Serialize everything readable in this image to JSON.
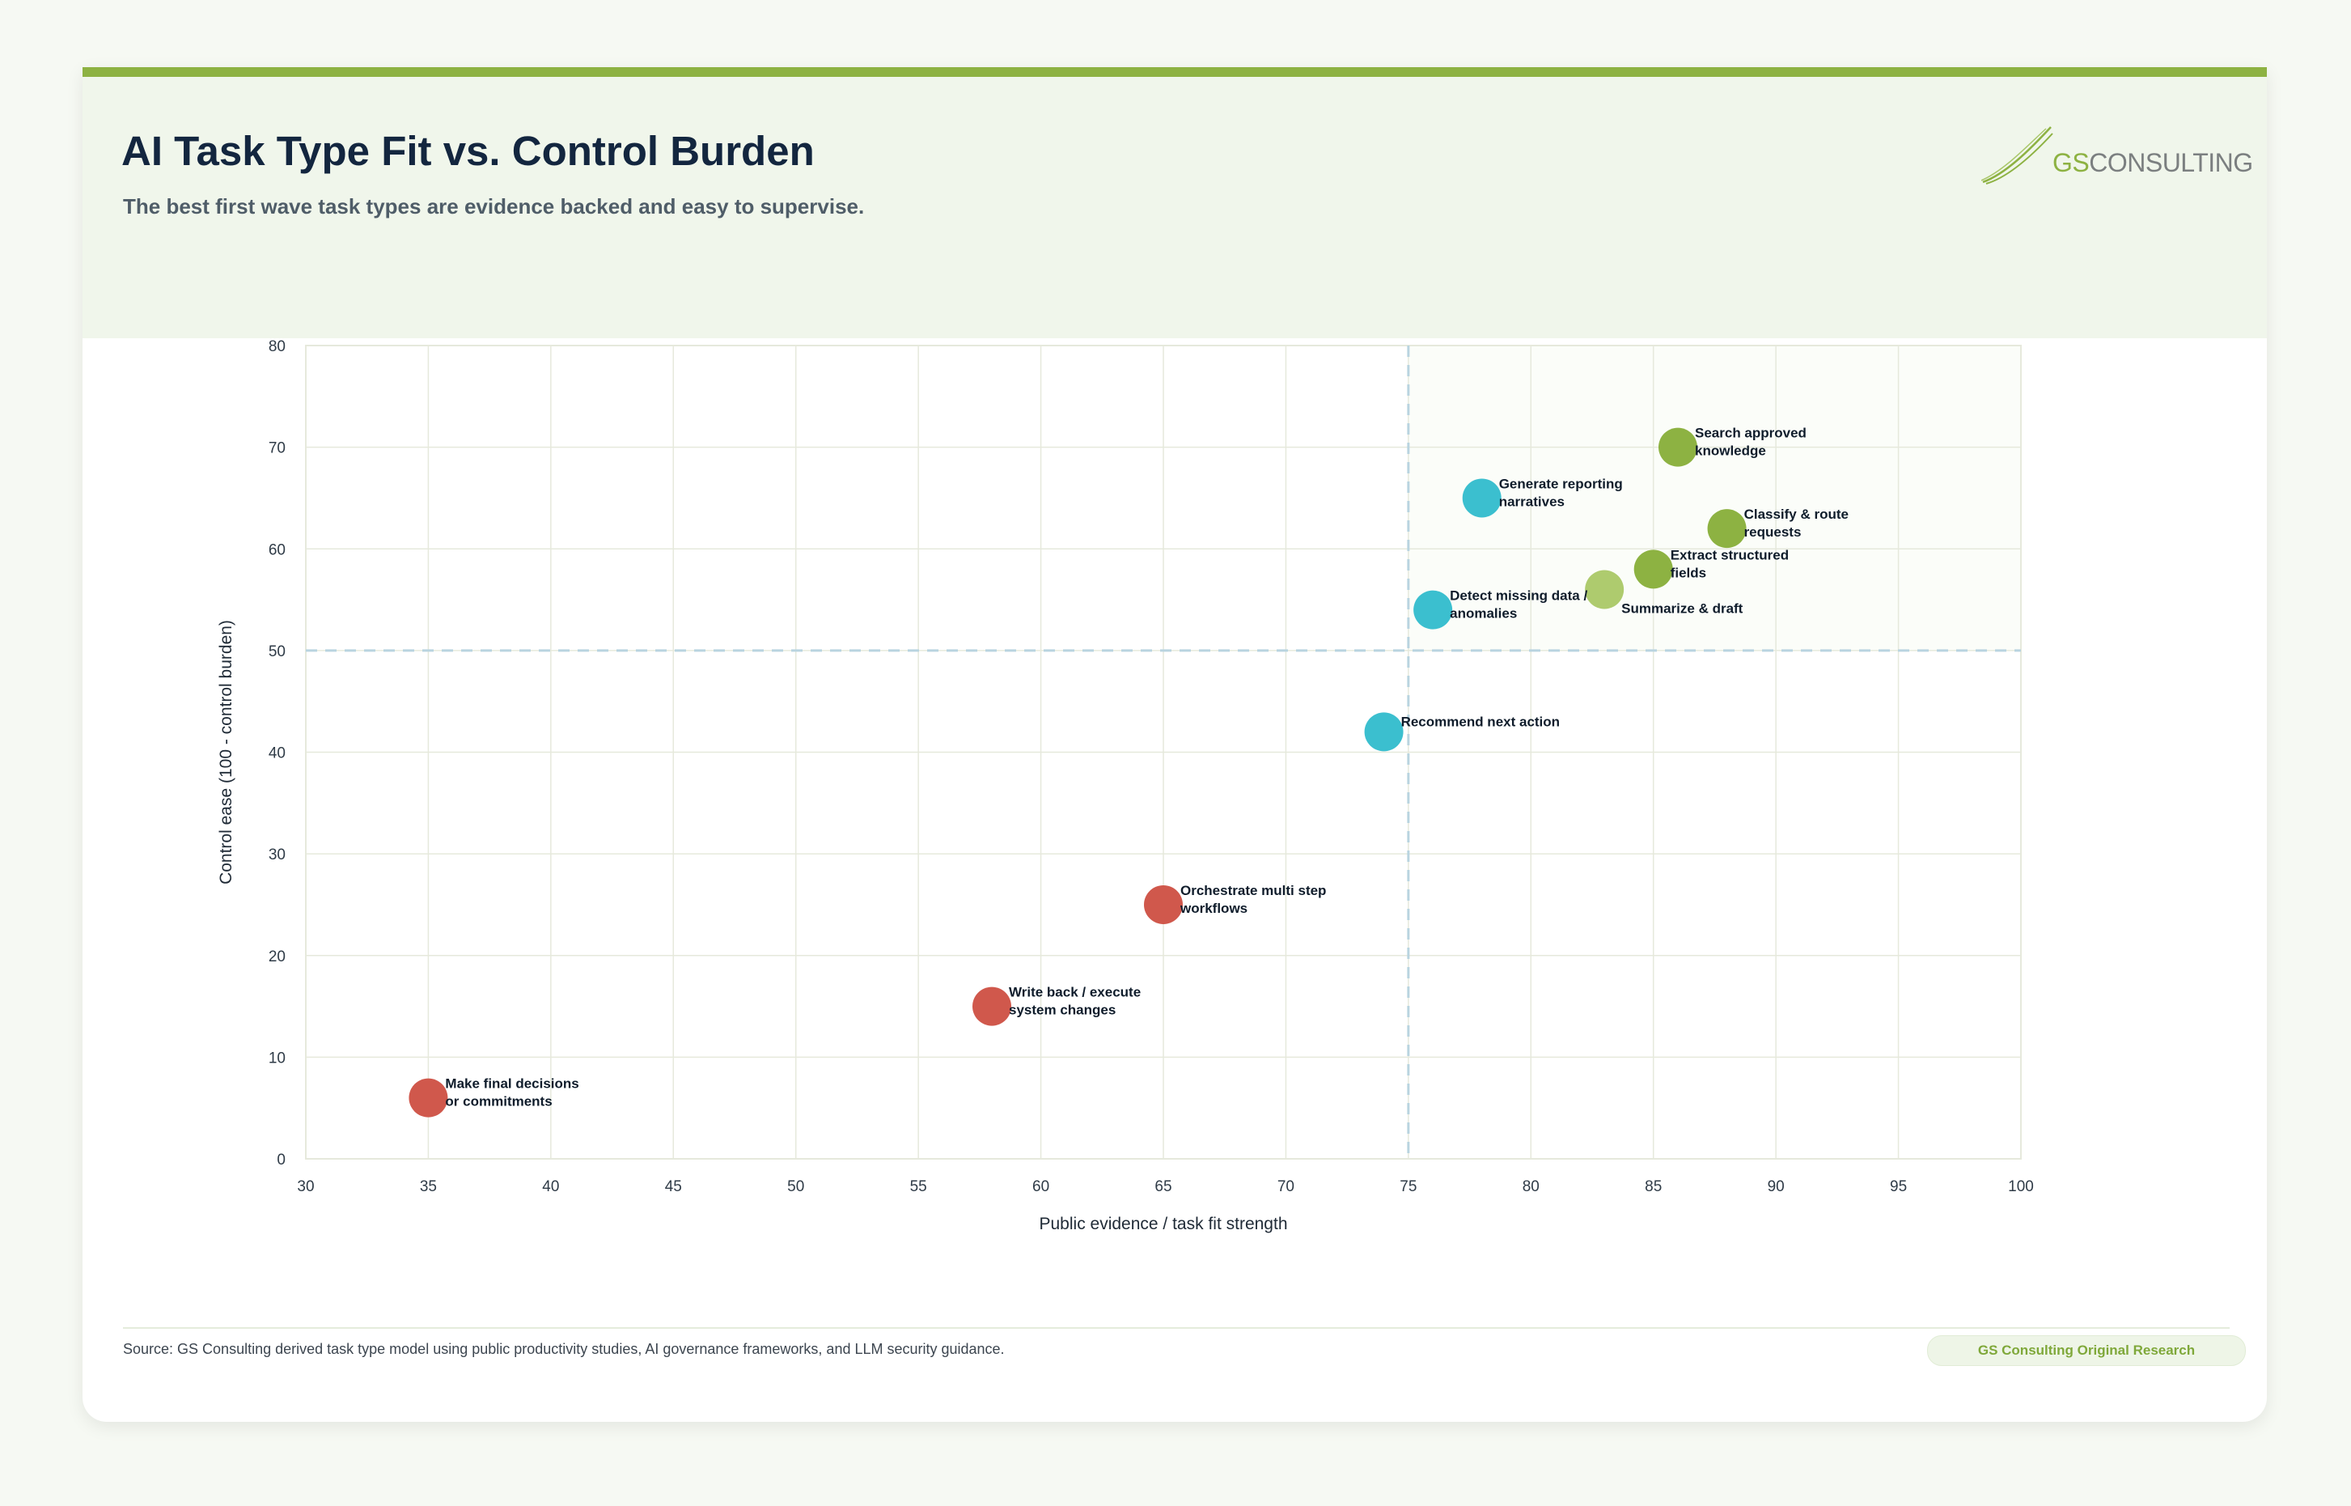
{
  "header": {
    "title": "AI Task Type Fit vs. Control Burden",
    "subtitle": "The best first wave task types are evidence backed and easy to supervise."
  },
  "logo": {
    "prefix": "GS",
    "suffix": "CONSULTING"
  },
  "footer": {
    "source": "Source: GS Consulting derived task type model using public productivity studies, AI governance frameworks, and LLM security guidance.",
    "badge": "GS Consulting Original Research"
  },
  "colors": {
    "green": "#8db242",
    "light_green": "#aecb6e",
    "teal": "#3bbfcf",
    "red": "#d0584c",
    "grid": "#e6e9dc",
    "reference": "#b9d4e0"
  },
  "chart_data": {
    "type": "scatter",
    "xlabel": "Public evidence / task fit strength",
    "ylabel": "Control ease (100 - control burden)",
    "xlim": [
      30,
      100
    ],
    "ylim": [
      0,
      80
    ],
    "x_ticks": [
      30,
      35,
      40,
      45,
      50,
      55,
      60,
      65,
      70,
      75,
      80,
      85,
      90,
      95,
      100
    ],
    "y_ticks": [
      0,
      10,
      20,
      30,
      40,
      50,
      60,
      70,
      80
    ],
    "grid": true,
    "reference_lines": {
      "x": 75,
      "y": 50
    },
    "points": [
      {
        "label": [
          "Search approved",
          "knowledge"
        ],
        "x": 86,
        "y": 70,
        "color": "#8db242",
        "label_pos": "right"
      },
      {
        "label": [
          "Classify & route",
          "requests"
        ],
        "x": 88,
        "y": 62,
        "color": "#8db242",
        "label_pos": "right"
      },
      {
        "label": [
          "Extract structured",
          "fields"
        ],
        "x": 85,
        "y": 58,
        "color": "#8db242",
        "label_pos": "right"
      },
      {
        "label": [
          "Summarize & draft"
        ],
        "x": 83,
        "y": 56,
        "color": "#aecb6e",
        "label_pos": "below-right"
      },
      {
        "label": [
          "Generate reporting",
          "narratives"
        ],
        "x": 78,
        "y": 65,
        "color": "#3bbfcf",
        "label_pos": "right"
      },
      {
        "label": [
          "Detect missing data /",
          "anomalies"
        ],
        "x": 76,
        "y": 54,
        "color": "#3bbfcf",
        "label_pos": "right"
      },
      {
        "label": [
          "Recommend next action"
        ],
        "x": 74,
        "y": 42,
        "color": "#3bbfcf",
        "label_pos": "upper-right"
      },
      {
        "label": [
          "Orchestrate multi step",
          "workflows"
        ],
        "x": 65,
        "y": 25,
        "color": "#d0584c",
        "label_pos": "right"
      },
      {
        "label": [
          "Write back / execute",
          "system changes"
        ],
        "x": 58,
        "y": 15,
        "color": "#d0584c",
        "label_pos": "right"
      },
      {
        "label": [
          "Make final decisions",
          "or commitments"
        ],
        "x": 35,
        "y": 6,
        "color": "#d0584c",
        "label_pos": "right"
      }
    ]
  }
}
